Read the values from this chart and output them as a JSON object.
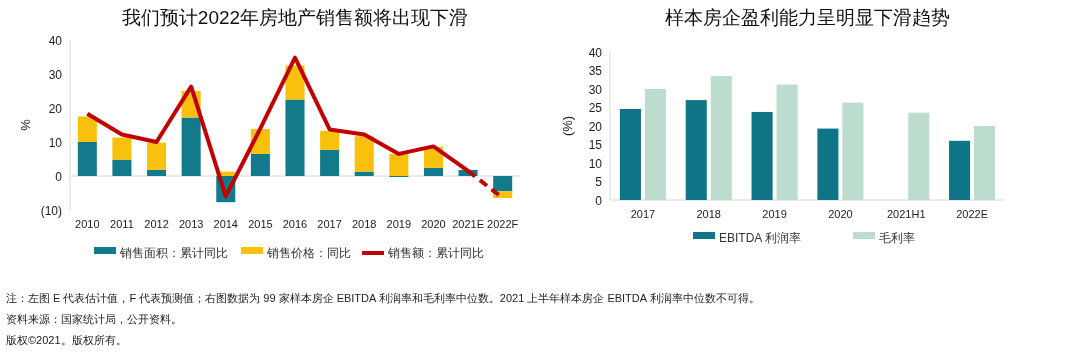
{
  "chart_data": [
    {
      "type": "bar",
      "title": "我们预计2022年房地产销售额将出现下滑",
      "ylabel": "%",
      "stacked": true,
      "legend": "bottom",
      "categories": [
        "2010",
        "2011",
        "2012",
        "2013",
        "2014",
        "2015",
        "2016",
        "2017",
        "2018",
        "2019",
        "2020",
        "2021E",
        "2022F"
      ],
      "ylim": [
        -10,
        40
      ],
      "yticks": [
        {
          "value": -10,
          "label": "(10)"
        },
        0,
        10,
        20,
        30,
        40
      ],
      "series": [
        {
          "name": "销售面积：累计同比",
          "color": "#137a8b",
          "values": [
            10,
            4.8,
            1.8,
            17.2,
            -7.7,
            6.5,
            22.5,
            7.7,
            1.3,
            -0.3,
            2.4,
            1.8,
            -4.5
          ]
        },
        {
          "name": "销售价格：同比",
          "color": "#f9c00e",
          "values": [
            7.5,
            6.5,
            8,
            7.8,
            1.3,
            7.3,
            10,
            5.6,
            10.4,
            6.5,
            6.2,
            null,
            -2
          ]
        },
        {
          "name": "销售额：累计同比",
          "type": "line",
          "color": "#c00000",
          "line_style": "solid",
          "values": [
            18.3,
            12.2,
            10,
            26.3,
            -6,
            14,
            34.8,
            13.7,
            12.2,
            6.5,
            8.7,
            1.5,
            null
          ]
        },
        {
          "type": "line",
          "color": "#c00000",
          "line_style": "dashed",
          "values": [
            null,
            null,
            null,
            null,
            null,
            null,
            null,
            null,
            null,
            null,
            null,
            1.5,
            -6.5
          ]
        }
      ],
      "annotations": [
        "注：左图 E 代表估计值，F 代表预测值；右图数据为 99 家样本房企 EBITDA 利润率和毛利率中位数。2021 上半年样本房企 EBITDA 利润率中位数不可得。",
        "资料来源：国家统计局，公开资料。",
        "版权©2021。版权所有。"
      ]
    },
    {
      "type": "bar",
      "title": "样本房企盈利能力呈明显下滑趋势",
      "ylabel": "(%)",
      "legend": "bottom",
      "categories": [
        "2017",
        "2018",
        "2019",
        "2020",
        "2021H1",
        "2022E"
      ],
      "ylim": [
        0,
        40
      ],
      "yticks": [
        0,
        5,
        10,
        15,
        20,
        25,
        30,
        35,
        40
      ],
      "series": [
        {
          "name": "EBITDA 利润率",
          "color": "#0e7486",
          "values": [
            24.6,
            27,
            23.8,
            19.3,
            null,
            16
          ]
        },
        {
          "name": "毛利率",
          "color": "#bcdccd",
          "values": [
            30,
            33.5,
            31.2,
            26.3,
            23.6,
            20
          ]
        }
      ]
    }
  ]
}
